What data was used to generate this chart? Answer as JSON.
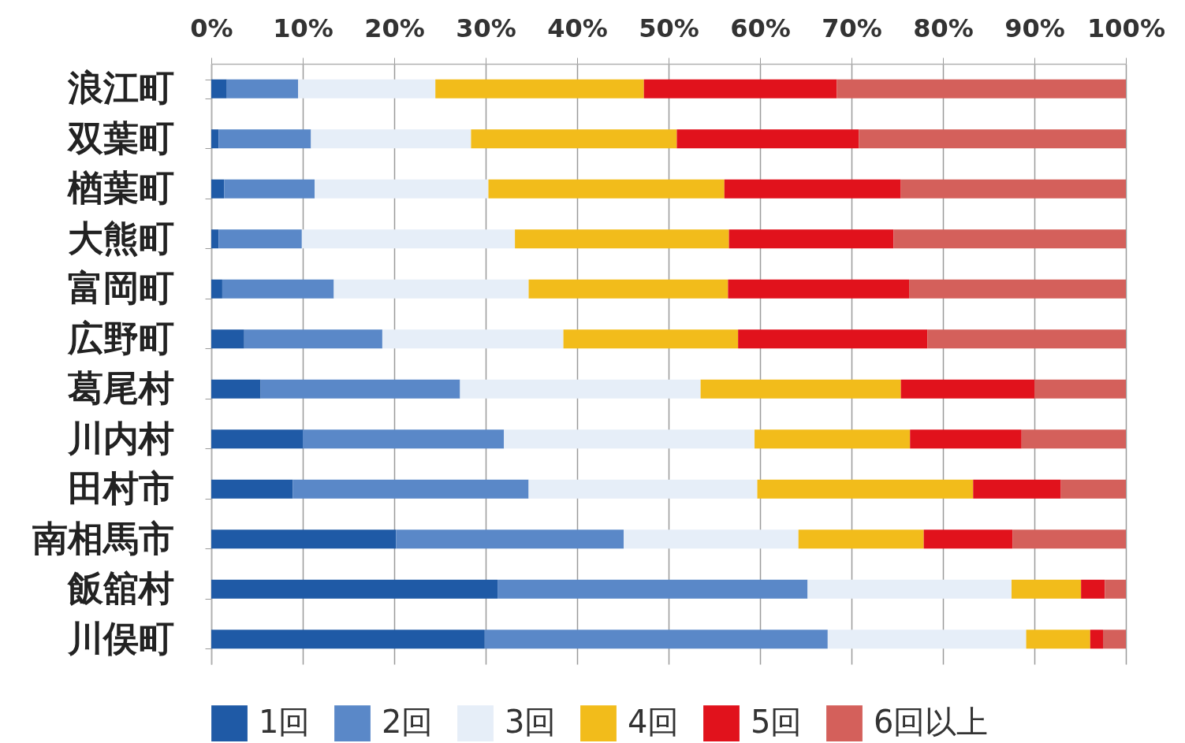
{
  "chart_data": {
    "type": "bar",
    "orientation": "horizontal",
    "stacked": true,
    "categories": [
      "浪江町",
      "双葉町",
      "楢葉町",
      "大熊町",
      "富岡町",
      "広野町",
      "葛尾村",
      "川内村",
      "田村市",
      "南相馬市",
      "飯舘村",
      "川俣町"
    ],
    "series": [
      {
        "name": "1回",
        "color": "#1f5aa6",
        "values": [
          1.7,
          0.8,
          1.4,
          0.8,
          1.2,
          3.6,
          5.4,
          10.0,
          8.9,
          20.2,
          31.3,
          29.9
        ]
      },
      {
        "name": "2回",
        "color": "#5a88c8",
        "values": [
          7.8,
          10.1,
          9.9,
          9.1,
          12.2,
          15.1,
          21.8,
          22.0,
          25.8,
          24.9,
          33.9,
          37.5
        ]
      },
      {
        "name": "3回",
        "color": "#e6eef8",
        "values": [
          15.0,
          17.5,
          19.0,
          23.3,
          21.3,
          19.8,
          26.3,
          27.4,
          25.0,
          19.1,
          22.3,
          21.7
        ]
      },
      {
        "name": "4回",
        "color": "#f2bc1b",
        "values": [
          22.8,
          22.5,
          25.8,
          23.4,
          21.8,
          19.1,
          21.9,
          17.0,
          23.6,
          13.7,
          7.6,
          7.0
        ]
      },
      {
        "name": "5回",
        "color": "#e1121c",
        "values": [
          21.1,
          19.9,
          19.3,
          18.0,
          19.8,
          20.7,
          14.6,
          12.2,
          9.6,
          9.7,
          2.6,
          1.4
        ]
      },
      {
        "name": "6回以上",
        "color": "#d4605b",
        "values": [
          31.6,
          29.2,
          24.6,
          25.4,
          23.7,
          21.7,
          10.0,
          11.4,
          7.1,
          12.4,
          2.3,
          2.5
        ]
      }
    ],
    "xlim": [
      0,
      100
    ],
    "xticks": [
      {
        "value": 0,
        "label": "0%"
      },
      {
        "value": 10,
        "label": "10%"
      },
      {
        "value": 20,
        "label": "20%"
      },
      {
        "value": 30,
        "label": "30%"
      },
      {
        "value": 40,
        "label": "40%"
      },
      {
        "value": 50,
        "label": "50%"
      },
      {
        "value": 60,
        "label": "60%"
      },
      {
        "value": 70,
        "label": "70%"
      },
      {
        "value": 80,
        "label": "80%"
      },
      {
        "value": 90,
        "label": "90%"
      },
      {
        "value": 100,
        "label": "100%"
      }
    ],
    "grid": "x",
    "legend": "bottom"
  }
}
